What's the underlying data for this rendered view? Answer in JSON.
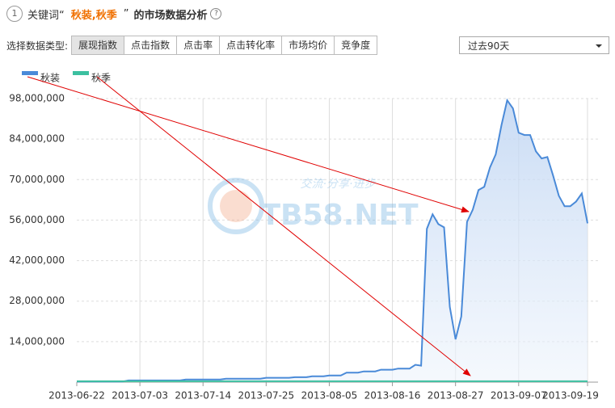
{
  "header": {
    "step": "1",
    "prefix": "关键词“",
    "keywords": "秋装,秋季",
    "suffix": "”",
    "title": "的市场数据分析",
    "help": "?"
  },
  "toolbar": {
    "label": "选择数据类型:",
    "tabs": [
      "展现指数",
      "点击指数",
      "点击率",
      "点击转化率",
      "市场均价",
      "竞争度"
    ],
    "active": 0,
    "period": "过去90天"
  },
  "watermark": {
    "slogan": "交流·分享·进步",
    "site": "TB58.NET"
  },
  "chart_data": {
    "type": "line",
    "area": true,
    "grid": true,
    "categories": [
      "2013-06-22",
      null,
      null,
      null,
      null,
      null,
      null,
      null,
      null,
      null,
      null,
      "2013-07-03",
      null,
      null,
      null,
      null,
      null,
      null,
      null,
      null,
      null,
      null,
      "2013-07-14",
      null,
      null,
      null,
      null,
      null,
      null,
      null,
      null,
      null,
      null,
      "2013-07-25",
      null,
      null,
      null,
      null,
      null,
      null,
      null,
      null,
      null,
      null,
      "2013-08-05",
      null,
      null,
      null,
      null,
      null,
      null,
      null,
      null,
      null,
      null,
      "2013-08-16",
      null,
      null,
      null,
      null,
      null,
      null,
      null,
      null,
      null,
      null,
      "2013-08-27",
      null,
      null,
      null,
      null,
      null,
      null,
      null,
      null,
      null,
      null,
      "2013-09-07",
      null,
      null,
      null,
      null,
      null,
      null,
      null,
      null,
      null,
      null,
      null,
      "2013-09-19"
    ],
    "ylim": [
      0,
      98000000
    ],
    "yticks": [
      {
        "value": 14000000,
        "label": "14,000,000"
      },
      {
        "value": 28000000,
        "label": "28,000,000"
      },
      {
        "value": 42000000,
        "label": "42,000,000"
      },
      {
        "value": 56000000,
        "label": "56,000,000"
      },
      {
        "value": 70000000,
        "label": "70,000,000"
      },
      {
        "value": 84000000,
        "label": "84,000,000"
      },
      {
        "value": 98000000,
        "label": "98,000,000"
      }
    ],
    "series": [
      {
        "name": "秋装",
        "color": "#4a8ad8",
        "values": [
          200000,
          200000,
          200000,
          200000,
          200000,
          200000,
          200000,
          200000,
          200000,
          600000,
          600000,
          600000,
          600000,
          600000,
          600000,
          600000,
          600000,
          600000,
          600000,
          900000,
          900000,
          900000,
          900000,
          900000,
          900000,
          900000,
          1200000,
          1200000,
          1200000,
          1200000,
          1200000,
          1200000,
          1200000,
          1500000,
          1500000,
          1500000,
          1500000,
          1500000,
          1700000,
          1700000,
          1700000,
          2000000,
          2000000,
          2000000,
          2300000,
          2300000,
          2300000,
          3300000,
          3300000,
          3300000,
          3700000,
          3700000,
          3700000,
          4300000,
          4300000,
          4300000,
          4700000,
          4700000,
          4700000,
          6000000,
          5700000,
          53000000,
          58000000,
          54600000,
          53500000,
          26000000,
          14800000,
          22700000,
          55400000,
          59600000,
          66400000,
          67500000,
          74200000,
          78700000,
          88800000,
          97400000,
          94600000,
          86200000,
          85400000,
          85400000,
          79800000,
          77300000,
          77800000,
          71400000,
          64400000,
          60800000,
          60800000,
          62400000,
          65200000,
          54900000
        ]
      },
      {
        "name": "秋季",
        "color": "#3cc0a0",
        "values": [
          300000,
          300000,
          300000,
          300000,
          300000,
          300000,
          300000,
          300000,
          300000,
          300000,
          300000,
          300000,
          300000,
          300000,
          300000,
          300000,
          300000,
          300000,
          300000,
          300000,
          300000,
          300000,
          300000,
          300000,
          300000,
          300000,
          300000,
          300000,
          300000,
          300000,
          300000,
          300000,
          300000,
          300000,
          300000,
          300000,
          300000,
          300000,
          300000,
          300000,
          300000,
          300000,
          300000,
          300000,
          300000,
          300000,
          300000,
          300000,
          300000,
          300000,
          300000,
          300000,
          300000,
          300000,
          300000,
          300000,
          300000,
          300000,
          300000,
          300000,
          300000,
          300000,
          300000,
          300000,
          300000,
          300000,
          300000,
          300000,
          300000,
          300000,
          300000,
          300000,
          300000,
          300000,
          300000,
          300000,
          300000,
          300000,
          300000,
          300000,
          300000,
          300000,
          300000,
          300000,
          300000,
          300000,
          300000,
          300000,
          300000,
          300000
        ]
      }
    ]
  }
}
